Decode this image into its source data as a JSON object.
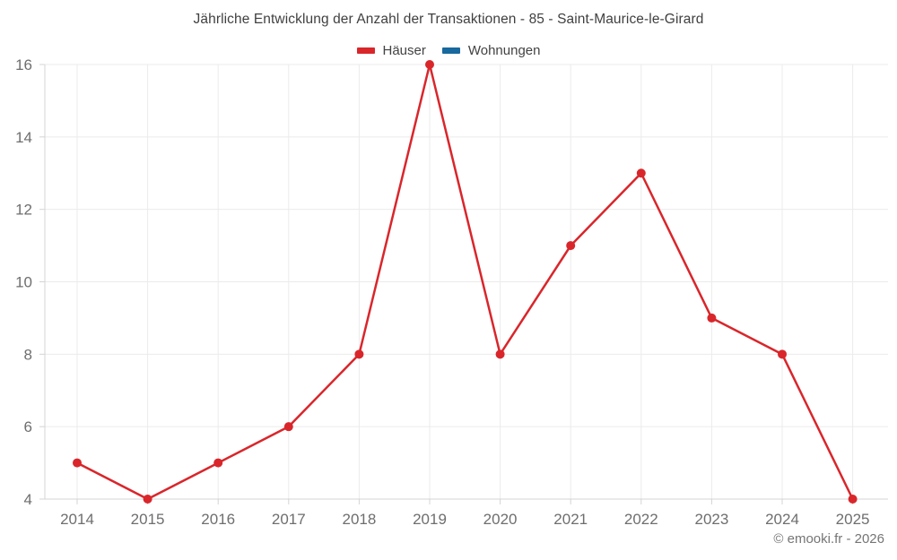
{
  "chart_data": {
    "type": "line",
    "title": "Jährliche Entwicklung der Anzahl der Transaktionen - 85 - Saint-Maurice-le-Girard",
    "categories": [
      "2014",
      "2015",
      "2016",
      "2017",
      "2018",
      "2019",
      "2020",
      "2021",
      "2022",
      "2023",
      "2024",
      "2025"
    ],
    "series": [
      {
        "name": "Häuser",
        "color": "#d9262b",
        "values": [
          5,
          4,
          5,
          6,
          8,
          16,
          8,
          11,
          13,
          9,
          8,
          4
        ]
      },
      {
        "name": "Wohnungen",
        "color": "#17699e",
        "values": []
      }
    ],
    "ylim": [
      4,
      16
    ],
    "yticks": [
      4,
      6,
      8,
      10,
      12,
      14,
      16
    ],
    "grid": true,
    "legend_position": "top",
    "grid_color": "#ebebeb",
    "axis_color": "#d4d4d4",
    "tick_label_color": "#6e6e6e",
    "title_color": "#404040",
    "marker_radius": 5,
    "line_width": 2.5
  },
  "footer": {
    "copyright": "© emooki.fr - 2026"
  }
}
